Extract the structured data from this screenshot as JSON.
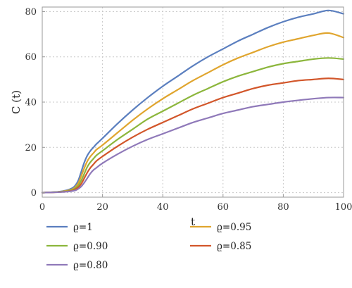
{
  "chart_data": {
    "type": "line",
    "title": "",
    "xlabel": "t",
    "ylabel": "C (t)",
    "xlim": [
      0,
      100
    ],
    "ylim": [
      -2,
      82
    ],
    "xticks": [
      0,
      20,
      40,
      60,
      80,
      100
    ],
    "yticks": [
      0,
      20,
      40,
      60,
      80
    ],
    "grid": true,
    "legend_position": "bottom",
    "x": [
      0,
      5,
      8,
      10,
      11,
      12,
      13,
      14,
      15,
      16,
      17,
      18,
      20,
      25,
      30,
      35,
      40,
      45,
      50,
      55,
      60,
      65,
      70,
      75,
      80,
      85,
      90,
      95,
      100
    ],
    "series": [
      {
        "name": "ϱ=1",
        "color": "#5b7fbf",
        "values": [
          0,
          0.3,
          1.0,
          2.0,
          3.2,
          5.5,
          9.5,
          13.5,
          16.5,
          18.5,
          20.0,
          21.5,
          24.0,
          30.5,
          36.5,
          42.0,
          47.0,
          51.5,
          56.0,
          60.0,
          63.5,
          67.0,
          70.0,
          73.0,
          75.5,
          77.5,
          79.0,
          80.5,
          79.0
        ]
      },
      {
        "name": "ϱ=0.95",
        "color": "#e0a52e",
        "values": [
          0,
          0.3,
          0.8,
          1.5,
          2.5,
          4.3,
          7.5,
          11.0,
          14.0,
          16.0,
          17.5,
          19.0,
          21.0,
          26.5,
          32.0,
          37.0,
          41.5,
          45.5,
          49.5,
          53.0,
          56.5,
          59.5,
          62.0,
          64.5,
          66.5,
          68.0,
          69.5,
          70.5,
          68.5
        ]
      },
      {
        "name": "ϱ=0.90",
        "color": "#8cb63c",
        "values": [
          0,
          0.3,
          0.6,
          1.2,
          2.0,
          3.2,
          5.5,
          8.5,
          11.5,
          13.5,
          15.0,
          16.5,
          18.5,
          23.5,
          28.0,
          32.5,
          36.0,
          39.5,
          43.0,
          46.0,
          49.0,
          51.5,
          53.5,
          55.5,
          57.0,
          58.0,
          59.0,
          59.5,
          59.0
        ]
      },
      {
        "name": "ϱ=0.85",
        "color": "#d2562a",
        "values": [
          0,
          0.2,
          0.5,
          0.9,
          1.5,
          2.4,
          4.0,
          6.5,
          9.0,
          11.0,
          12.5,
          14.0,
          16.0,
          20.5,
          24.5,
          28.0,
          31.0,
          34.0,
          37.0,
          39.5,
          42.0,
          44.0,
          46.0,
          47.5,
          48.5,
          49.5,
          50.0,
          50.5,
          50.0
        ]
      },
      {
        "name": "ϱ=0.80",
        "color": "#8f79b9",
        "values": [
          0,
          0.2,
          0.4,
          0.7,
          1.0,
          1.7,
          2.8,
          4.5,
          6.5,
          8.5,
          10.0,
          11.0,
          13.0,
          17.0,
          20.5,
          23.5,
          26.0,
          28.5,
          31.0,
          33.0,
          35.0,
          36.5,
          38.0,
          39.0,
          40.0,
          40.8,
          41.5,
          42.0,
          42.0
        ]
      }
    ]
  }
}
